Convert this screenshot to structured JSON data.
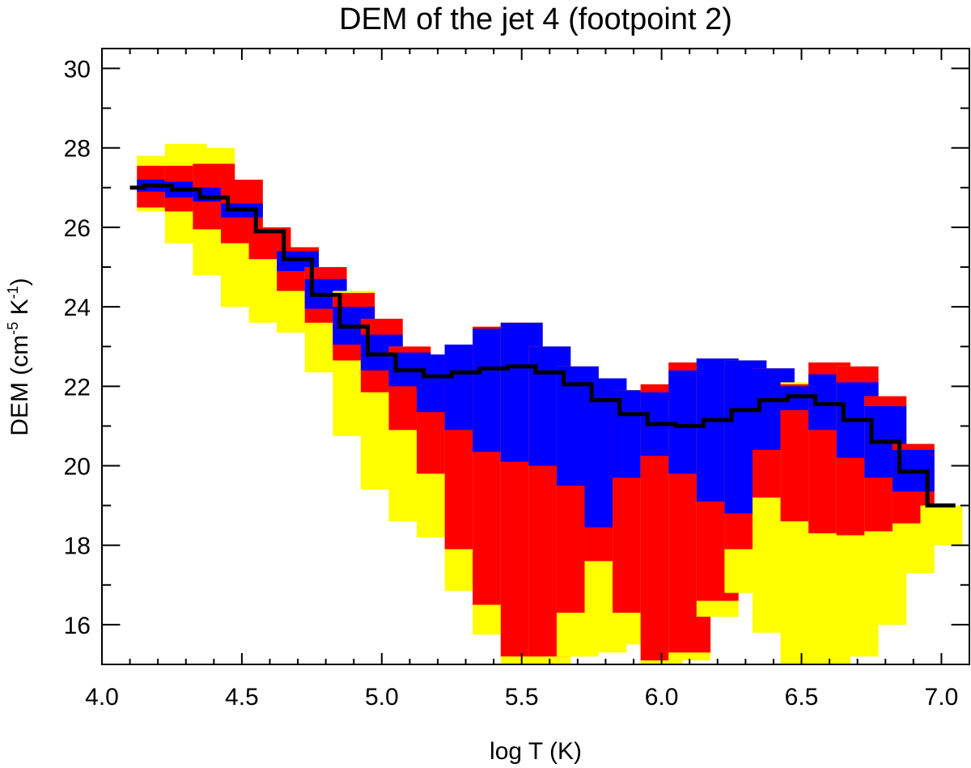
{
  "chart_data": {
    "type": "bar",
    "subtype": "floating-range-bars-with-step-line",
    "title": "DEM of the jet 4 (footpoint 2)",
    "xlabel": "log T (K)",
    "ylabel": {
      "prefix": "DEM (cm",
      "sup1": "-5",
      "mid": " K",
      "sup2": "-1",
      "suffix": ")"
    },
    "xlim": [
      4.0,
      7.1
    ],
    "ylim": [
      15.0,
      30.5
    ],
    "xticks": [
      4.0,
      4.5,
      5.0,
      5.5,
      6.0,
      6.5,
      7.0
    ],
    "xtick_labels": [
      "4.0",
      "4.5",
      "5.0",
      "5.5",
      "6.0",
      "6.5",
      "7.0"
    ],
    "yticks": [
      16,
      18,
      20,
      22,
      24,
      26,
      28,
      30
    ],
    "ytick_labels": [
      "16",
      "18",
      "20",
      "22",
      "24",
      "26",
      "28",
      "30"
    ],
    "colors": {
      "yellow": "#ffff00",
      "red": "#ff0000",
      "blue": "#0000ff",
      "line": "#000000"
    },
    "bars": [
      {
        "x": 4.2,
        "yellow": [
          26.4,
          27.8
        ],
        "red": [
          26.5,
          27.55
        ],
        "blue": [
          26.9,
          27.2
        ]
      },
      {
        "x": 4.3,
        "yellow": [
          25.6,
          28.1
        ],
        "red": [
          26.4,
          27.55
        ],
        "blue": [
          26.75,
          27.15
        ]
      },
      {
        "x": 4.4,
        "yellow": [
          24.8,
          28.0
        ],
        "red": [
          25.95,
          27.6
        ],
        "blue": [
          26.65,
          27.0
        ]
      },
      {
        "x": 4.5,
        "yellow": [
          24.0,
          27.2
        ],
        "red": [
          25.6,
          27.2
        ],
        "blue": [
          26.25,
          26.6
        ]
      },
      {
        "x": 4.6,
        "yellow": [
          23.6,
          26.0
        ],
        "red": [
          25.2,
          26.0
        ],
        "blue": null
      },
      {
        "x": 4.7,
        "yellow": [
          23.35,
          25.5
        ],
        "red": [
          24.4,
          25.5
        ],
        "blue": [
          24.9,
          25.4
        ]
      },
      {
        "x": 4.8,
        "yellow": [
          22.35,
          25.0
        ],
        "red": [
          23.6,
          25.0
        ],
        "blue": [
          23.95,
          24.7
        ]
      },
      {
        "x": 4.9,
        "yellow": [
          20.75,
          24.4
        ],
        "red": [
          22.65,
          24.35
        ],
        "blue": [
          23.05,
          24.0
        ]
      },
      {
        "x": 5.0,
        "yellow": [
          19.4,
          22.4
        ],
        "red": [
          21.85,
          23.7
        ],
        "blue": [
          22.4,
          23.3
        ]
      },
      {
        "x": 5.1,
        "yellow": [
          18.6,
          23.0
        ],
        "red": [
          20.9,
          23.0
        ],
        "blue": [
          22.0,
          22.85
        ]
      },
      {
        "x": 5.2,
        "yellow": [
          18.2,
          22.8
        ],
        "red": [
          19.8,
          22.8
        ],
        "blue": [
          21.35,
          22.8
        ]
      },
      {
        "x": 5.3,
        "yellow": [
          16.85,
          23.0
        ],
        "red": [
          17.9,
          23.0
        ],
        "blue": [
          20.9,
          23.05
        ]
      },
      {
        "x": 5.4,
        "yellow": [
          15.75,
          23.5
        ],
        "red": [
          16.5,
          23.5
        ],
        "blue": [
          20.35,
          23.45
        ]
      },
      {
        "x": 5.5,
        "yellow": [
          15.0,
          23.6
        ],
        "red": [
          15.2,
          23.6
        ],
        "blue": [
          20.1,
          23.6
        ]
      },
      {
        "x": 5.6,
        "yellow": [
          15.0,
          23.0
        ],
        "red": [
          15.2,
          23.0
        ],
        "blue": [
          20.0,
          23.0
        ]
      },
      {
        "x": 5.7,
        "yellow": [
          15.2,
          22.5
        ],
        "red": [
          16.3,
          22.5
        ],
        "blue": [
          19.5,
          22.5
        ]
      },
      {
        "x": 5.8,
        "yellow": [
          15.3,
          22.2
        ],
        "red": [
          17.6,
          22.2
        ],
        "blue": [
          18.45,
          22.2
        ]
      },
      {
        "x": 5.9,
        "yellow": [
          15.5,
          21.9
        ],
        "red": [
          16.3,
          21.9
        ],
        "blue": [
          19.7,
          21.9
        ]
      },
      {
        "x": 6.0,
        "yellow": [
          15.0,
          22.05
        ],
        "red": [
          15.1,
          22.05
        ],
        "blue": [
          20.25,
          21.85
        ]
      },
      {
        "x": 6.1,
        "yellow": [
          15.1,
          22.6
        ],
        "red": [
          15.3,
          22.6
        ],
        "blue": [
          19.8,
          22.4
        ]
      },
      {
        "x": 6.2,
        "yellow": [
          16.2,
          22.7
        ],
        "red": [
          16.6,
          22.7
        ],
        "blue": [
          19.1,
          22.7
        ]
      },
      {
        "x": 6.3,
        "yellow": [
          16.8,
          22.65
        ],
        "red": [
          17.9,
          22.65
        ],
        "blue": [
          18.8,
          22.65
        ]
      },
      {
        "x": 6.4,
        "yellow": [
          15.8,
          22.45
        ],
        "red": [
          19.2,
          22.45
        ],
        "blue": [
          20.4,
          22.45
        ]
      },
      {
        "x": 6.5,
        "yellow": [
          15.0,
          22.1
        ],
        "red": [
          18.6,
          22.05
        ],
        "blue": [
          21.4,
          22.0
        ]
      },
      {
        "x": 6.6,
        "yellow": [
          15.0,
          22.6
        ],
        "red": [
          18.3,
          22.6
        ],
        "blue": [
          20.9,
          22.3
        ]
      },
      {
        "x": 6.7,
        "yellow": [
          15.2,
          22.5
        ],
        "red": [
          18.25,
          22.5
        ],
        "blue": [
          20.2,
          22.1
        ]
      },
      {
        "x": 6.8,
        "yellow": [
          16.0,
          21.75
        ],
        "red": [
          18.35,
          21.75
        ],
        "blue": [
          19.7,
          21.5
        ]
      },
      {
        "x": 6.9,
        "yellow": [
          17.3,
          20.55
        ],
        "red": [
          18.55,
          20.55
        ],
        "blue": [
          19.35,
          20.4
        ]
      },
      {
        "x": 7.0,
        "yellow": [
          18.0,
          19.0
        ],
        "red": null,
        "blue": null
      }
    ],
    "step_line": {
      "x": [
        4.1,
        4.2,
        4.3,
        4.4,
        4.5,
        4.6,
        4.7,
        4.8,
        4.9,
        5.0,
        5.1,
        5.2,
        5.3,
        5.4,
        5.5,
        5.6,
        5.7,
        5.8,
        5.9,
        6.0,
        6.1,
        6.2,
        6.3,
        6.4,
        6.5,
        6.6,
        6.7,
        6.8,
        6.9,
        7.0
      ],
      "y": [
        27.0,
        27.05,
        26.95,
        26.75,
        26.45,
        25.9,
        25.2,
        24.3,
        23.5,
        22.8,
        22.4,
        22.25,
        22.35,
        22.45,
        22.5,
        22.35,
        22.05,
        21.65,
        21.3,
        21.05,
        21.0,
        21.15,
        21.4,
        21.65,
        21.75,
        21.55,
        21.15,
        20.6,
        19.85,
        19.0
      ]
    }
  }
}
